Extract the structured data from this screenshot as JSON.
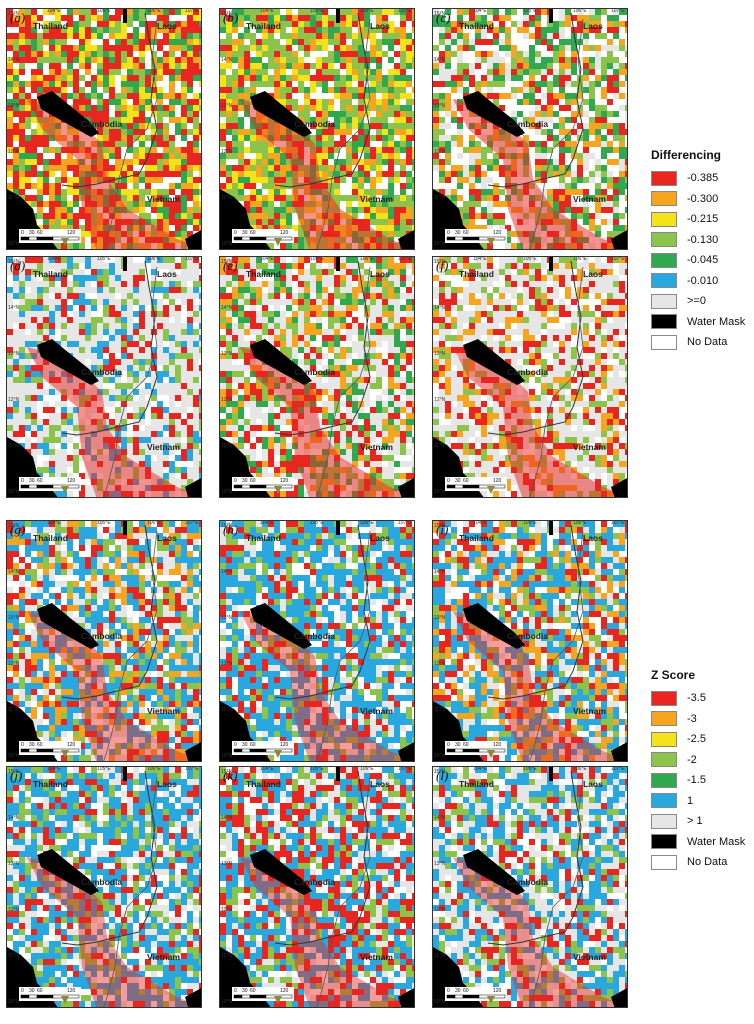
{
  "countries": {
    "thailand": "Thailand",
    "laos": "Laos",
    "cambodia": "Cambodia",
    "vietnam": "Vietnam"
  },
  "longitudes": [
    "104°E",
    "105°E",
    "106°E",
    "107°E"
  ],
  "latitudes": [
    "15°N",
    "14°N",
    "13°N",
    "12°N",
    "11°N",
    "10°N"
  ],
  "scale_ticks": [
    "0",
    "30",
    "60",
    "120"
  ],
  "panels": [
    {
      "label": "(a)",
      "group": "differencing",
      "palette": [
        "#e8251f",
        "#e8251f",
        "#f7a51e",
        "#f4e21a",
        "#8cc34b",
        "#2fa84f",
        "#ffffff"
      ]
    },
    {
      "label": "(b)",
      "group": "differencing",
      "palette": [
        "#e8251f",
        "#f7a51e",
        "#8cc34b",
        "#8cc34b",
        "#2fa84f",
        "#ffffff",
        "#f4e21a"
      ]
    },
    {
      "label": "(c)",
      "group": "differencing",
      "palette": [
        "#8cc34b",
        "#e8251f",
        "#f7a51e",
        "#ffffff",
        "#ffffff",
        "#2fa84f",
        "#e6e6e6"
      ]
    },
    {
      "label": "(d)",
      "group": "differencing",
      "palette": [
        "#e6e6e6",
        "#e6e6e6",
        "#ffffff",
        "#e8251f",
        "#8cc34b",
        "#29a8df",
        "#e6e6e6"
      ]
    },
    {
      "label": "(e)",
      "group": "differencing",
      "palette": [
        "#e6e6e6",
        "#e8251f",
        "#8cc34b",
        "#f7a51e",
        "#ffffff",
        "#e6e6e6",
        "#2fa84f"
      ]
    },
    {
      "label": "(f)",
      "group": "differencing",
      "palette": [
        "#e6e6e6",
        "#e6e6e6",
        "#e6e6e6",
        "#8cc34b",
        "#e8251f",
        "#ffffff",
        "#f7a51e"
      ]
    },
    {
      "label": "(g)",
      "group": "zscore",
      "palette": [
        "#29a8df",
        "#e8251f",
        "#8cc34b",
        "#e6e6e6",
        "#29a8df",
        "#f7a51e",
        "#ffffff"
      ]
    },
    {
      "label": "(h)",
      "group": "zscore",
      "palette": [
        "#29a8df",
        "#29a8df",
        "#e8251f",
        "#e6e6e6",
        "#8cc34b",
        "#ffffff",
        "#29a8df"
      ]
    },
    {
      "label": "(i)",
      "group": "zscore",
      "palette": [
        "#29a8df",
        "#e6e6e6",
        "#e8251f",
        "#8cc34b",
        "#29a8df",
        "#ffffff",
        "#f7a51e"
      ]
    },
    {
      "label": "(j)",
      "group": "zscore",
      "palette": [
        "#29a8df",
        "#29a8df",
        "#29a8df",
        "#e6e6e6",
        "#e8251f",
        "#8cc34b",
        "#ffffff"
      ]
    },
    {
      "label": "(k)",
      "group": "zscore",
      "palette": [
        "#e6e6e6",
        "#e8251f",
        "#29a8df",
        "#e8251f",
        "#8cc34b",
        "#29a8df",
        "#ffffff"
      ]
    },
    {
      "label": "(l)",
      "group": "zscore",
      "palette": [
        "#e6e6e6",
        "#29a8df",
        "#e6e6e6",
        "#e8251f",
        "#29a8df",
        "#8cc34b",
        "#ffffff"
      ]
    }
  ],
  "legend_differencing": {
    "title": "Differencing",
    "items": [
      {
        "label": "-0.385",
        "color": "#e8251f"
      },
      {
        "label": "-0.300",
        "color": "#f7a51e"
      },
      {
        "label": "-0.215",
        "color": "#f4e21a"
      },
      {
        "label": "-0.130",
        "color": "#8cc34b"
      },
      {
        "label": "-0.045",
        "color": "#2fa84f"
      },
      {
        "label": "-0.010",
        "color": "#29a8df"
      },
      {
        "label": ">=0",
        "color": "#e6e6e6"
      },
      {
        "label": "Water Mask",
        "color": "#000000"
      },
      {
        "label": "No Data",
        "color": "#ffffff"
      }
    ]
  },
  "legend_zscore": {
    "title": "Z Score",
    "items": [
      {
        "label": "-3.5",
        "color": "#e8251f"
      },
      {
        "label": "-3",
        "color": "#f7a51e"
      },
      {
        "label": "-2.5",
        "color": "#f4e21a"
      },
      {
        "label": "-2",
        "color": "#8cc34b"
      },
      {
        "label": "-1.5",
        "color": "#2fa84f"
      },
      {
        "label": "1",
        "color": "#29a8df"
      },
      {
        "label": "> 1",
        "color": "#e6e6e6"
      },
      {
        "label": "Water Mask",
        "color": "#000000"
      },
      {
        "label": "No Data",
        "color": "#ffffff"
      }
    ]
  }
}
